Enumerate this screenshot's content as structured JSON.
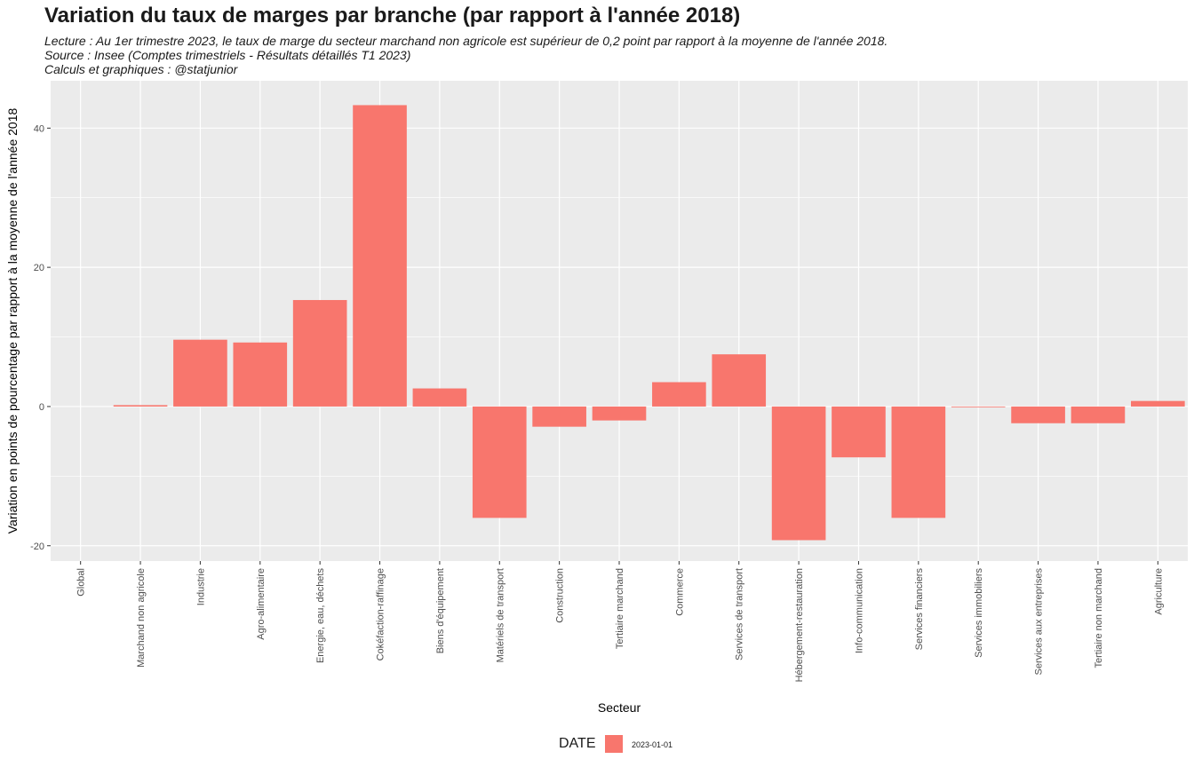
{
  "title": "Variation du taux de marges par branche (par rapport à l'année 2018)",
  "subtitle_lines": [
    "Lecture : Au 1er trimestre 2023, le taux de marge du secteur marchand non agricole est supérieur de 0,2 point par rapport à la moyenne de l'année 2018.",
    "Source : Insee (Comptes trimestriels - Résultats détaillés T1 2023)",
    "Calculs et graphiques : @statjunior"
  ],
  "legend": {
    "title": "DATE",
    "label": "2023-01-01"
  },
  "colors": {
    "bar": "#F8766D",
    "panel": "#EBEBEB",
    "grid": "#FFFFFF"
  },
  "chart_data": {
    "type": "bar",
    "xlabel": "Secteur",
    "ylabel": "Variation en points de pourcentage par rapport à la moyenne de l'année 2018",
    "ylim": [
      -22.2,
      46.8
    ],
    "yticks": [
      -20,
      0,
      20,
      40
    ],
    "categories": [
      "Global",
      "Marchand non agricole",
      "Industrie",
      "Agro-alimentaire",
      "Energie, eau, déchets",
      "Cokéfaction-raffinage",
      "Biens d'équipement",
      "Matériels de transport",
      "Construction",
      "Tertiaire marchand",
      "Commerce",
      "Services de transport",
      "Hébergement-restauration",
      "Info-communication",
      "Services financiers",
      "Services immobiliers",
      "Services aux entreprises",
      "Tertiaire non marchand",
      "Agriculture"
    ],
    "series": [
      {
        "name": "2023-01-01",
        "values": [
          0,
          0.2,
          9.6,
          9.2,
          15.3,
          43.3,
          2.6,
          -16.0,
          -2.9,
          -2.0,
          3.5,
          7.5,
          -19.2,
          -7.3,
          -16.0,
          -0.1,
          -2.4,
          -2.4,
          0.8
        ]
      }
    ],
    "grid": true,
    "legend_position": "bottom"
  }
}
